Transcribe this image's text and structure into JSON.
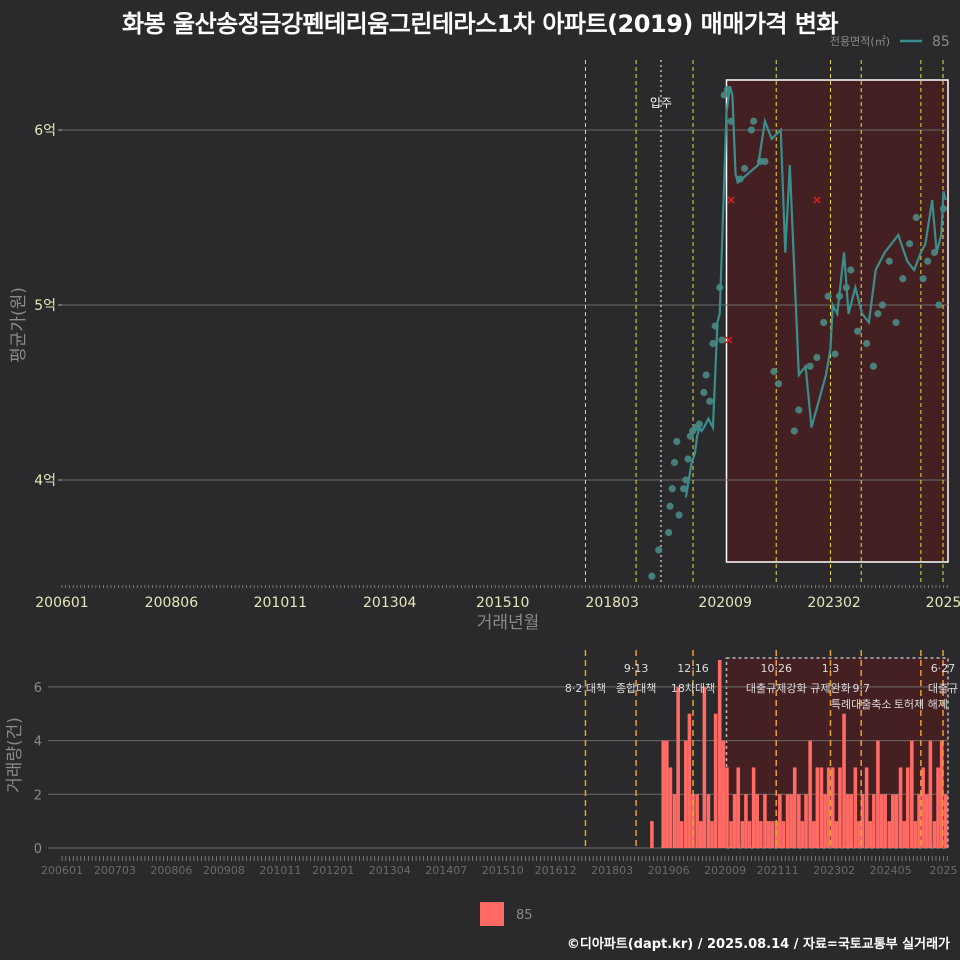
{
  "title": "화봉 울산송정금강펜테리움그린테라스1차 아파트(2019) 매매가격 변화",
  "footer": "©디아파트(dapt.kr) / 2025.08.14 / 자료=국토교통부 실거래가",
  "colors": {
    "background": "#2a2a2c",
    "line": "#3a8f8c",
    "point": "#4a8a84",
    "bar": "#ff6b64",
    "highlight_fill": "#4a1f22",
    "policy_yellow": "#e8e033",
    "policy_orange": "#e8a033",
    "cancel_mark": "#e02020"
  },
  "chart_data": [
    {
      "type": "line",
      "name": "price-chart",
      "title": "화봉 울산송정금강펜테리움그린테라스1차 아파트(2019) 매매가격 변화",
      "xlabel": "거래년월",
      "ylabel": "평균가(원)",
      "x_tick_labels": [
        "200601",
        "200806",
        "201011",
        "201304",
        "201510",
        "201803",
        "202009",
        "202302",
        "2025"
      ],
      "y_tick_labels": [
        "4억",
        "5억",
        "6억"
      ],
      "y_tick_values": [
        4.0,
        5.0,
        6.0
      ],
      "ylim": [
        3.4,
        6.4
      ],
      "y_unit": "억",
      "legend_title": "전용면적(㎡)",
      "legend_label": "85",
      "move_in_label": "입주",
      "move_in_x": 2019.25,
      "policy_lines": [
        2017.58,
        2018.7,
        2019.96,
        2021.8,
        2023.0,
        2023.68,
        2025.0,
        2025.49
      ],
      "highlight_range": [
        2020.7,
        2025.6
      ],
      "series": [
        {
          "name": "85",
          "x": [
            2019.8,
            2019.93,
            2020.0,
            2020.05,
            2020.1,
            2020.15,
            2020.2,
            2020.3,
            2020.4,
            2020.5,
            2020.55,
            2020.7,
            2020.78,
            2020.83,
            2020.9,
            2020.95,
            2021.4,
            2021.55,
            2021.7,
            2021.9,
            2022.0,
            2022.1,
            2022.3,
            2022.45,
            2022.58,
            2022.9,
            2023.0,
            2023.05,
            2023.15,
            2023.3,
            2023.4,
            2023.55,
            2023.7,
            2023.85,
            2024.0,
            2024.2,
            2024.35,
            2024.5,
            2024.7,
            2024.85,
            2025.0,
            2025.1,
            2025.25,
            2025.35,
            2025.45,
            2025.5,
            2025.55
          ],
          "y": [
            3.9,
            4.1,
            4.15,
            4.25,
            4.3,
            4.28,
            4.3,
            4.35,
            4.3,
            4.9,
            4.95,
            6.1,
            6.25,
            6.2,
            5.75,
            5.7,
            5.8,
            6.05,
            5.95,
            6.0,
            5.3,
            5.8,
            4.6,
            4.65,
            4.3,
            4.6,
            4.75,
            5.0,
            4.95,
            5.3,
            4.95,
            5.1,
            4.95,
            4.9,
            5.2,
            5.3,
            5.35,
            5.4,
            5.25,
            5.2,
            5.3,
            5.35,
            5.6,
            5.3,
            5.4,
            5.65,
            5.6
          ]
        }
      ],
      "points": {
        "x": [
          2019.05,
          2019.2,
          2019.42,
          2019.45,
          2019.5,
          2019.55,
          2019.6,
          2019.65,
          2019.75,
          2019.8,
          2019.85,
          2019.9,
          2019.95,
          2020.02,
          2020.1,
          2020.2,
          2020.25,
          2020.33,
          2020.4,
          2020.45,
          2020.55,
          2020.6,
          2020.65,
          2020.72,
          2020.8,
          2021.0,
          2021.1,
          2021.25,
          2021.3,
          2021.45,
          2021.55,
          2021.75,
          2021.85,
          2022.2,
          2022.3,
          2022.55,
          2022.7,
          2022.85,
          2022.95,
          2023.1,
          2023.2,
          2023.35,
          2023.45,
          2023.6,
          2023.8,
          2023.95,
          2024.05,
          2024.15,
          2024.3,
          2024.45,
          2024.6,
          2024.75,
          2024.9,
          2025.05,
          2025.15,
          2025.3,
          2025.4,
          2025.5
        ],
        "y": [
          3.45,
          3.6,
          3.7,
          3.85,
          3.95,
          4.1,
          4.22,
          3.8,
          3.95,
          4.0,
          4.12,
          4.25,
          4.28,
          4.3,
          4.32,
          4.5,
          4.6,
          4.45,
          4.78,
          4.88,
          5.1,
          4.8,
          6.2,
          6.23,
          6.05,
          5.72,
          5.78,
          6.0,
          6.05,
          5.82,
          5.82,
          4.62,
          4.55,
          4.28,
          4.4,
          4.65,
          4.7,
          4.9,
          5.05,
          4.72,
          5.05,
          5.1,
          5.2,
          4.85,
          4.78,
          4.65,
          4.95,
          5.0,
          5.25,
          4.9,
          5.15,
          5.35,
          5.5,
          5.15,
          5.25,
          5.3,
          5.0,
          5.55
        ]
      },
      "cancelled": {
        "x": [
          2020.75,
          2020.8,
          2022.7
        ],
        "y": [
          4.8,
          5.6,
          5.6
        ]
      }
    },
    {
      "type": "bar",
      "name": "volume-chart",
      "ylabel": "거래량(건)",
      "y_tick_labels": [
        "0",
        "2",
        "4",
        "6"
      ],
      "y_tick_values": [
        0,
        2,
        4,
        6
      ],
      "ylim": [
        0,
        7
      ],
      "x_tick_labels": [
        "200601",
        "200703",
        "200806",
        "200908",
        "201011",
        "201201",
        "201304",
        "201407",
        "201510",
        "201612",
        "201803",
        "201906",
        "202009",
        "202111",
        "202302",
        "202405",
        "2025"
      ],
      "legend_label": "85",
      "policy_lines": [
        2017.58,
        2018.7,
        2019.96,
        2021.8,
        2023.0,
        2023.68,
        2025.0,
        2025.49
      ],
      "highlight_range": [
        2020.7,
        2025.6
      ],
      "policy_annotations": [
        {
          "label": "8·2 대책",
          "x": 2017.58,
          "row": 1
        },
        {
          "label": "9·13",
          "x": 2018.7,
          "row": 0
        },
        {
          "label": "종합대책",
          "x": 2018.7,
          "row": 1
        },
        {
          "label": "12·16",
          "x": 2019.96,
          "row": 0
        },
        {
          "label": "18차대책",
          "x": 2019.96,
          "row": 1
        },
        {
          "label": "10·26",
          "x": 2021.8,
          "row": 0
        },
        {
          "label": "대출규제강화",
          "x": 2021.8,
          "row": 1
        },
        {
          "label": "1·3",
          "x": 2023.0,
          "row": 0
        },
        {
          "label": "규제완화",
          "x": 2023.0,
          "row": 1
        },
        {
          "label": "9·7",
          "x": 2023.68,
          "row": 1
        },
        {
          "label": "특례대출축소",
          "x": 2023.68,
          "row": 2
        },
        {
          "label": "토허제 해제",
          "x": 2025.0,
          "row": 2
        },
        {
          "label": "6·27",
          "x": 2025.49,
          "row": 0
        },
        {
          "label": "대출규",
          "x": 2025.49,
          "row": 1
        }
      ],
      "x": [
        2019.05,
        2019.3,
        2019.38,
        2019.46,
        2019.55,
        2019.63,
        2019.71,
        2019.8,
        2019.88,
        2019.96,
        2020.05,
        2020.13,
        2020.21,
        2020.3,
        2020.38,
        2020.46,
        2020.55,
        2020.63,
        2020.71,
        2020.8,
        2020.88,
        2020.96,
        2021.05,
        2021.13,
        2021.21,
        2021.3,
        2021.38,
        2021.46,
        2021.55,
        2021.63,
        2021.71,
        2021.8,
        2021.88,
        2021.96,
        2022.05,
        2022.13,
        2022.21,
        2022.3,
        2022.38,
        2022.46,
        2022.55,
        2022.63,
        2022.71,
        2022.8,
        2022.88,
        2022.96,
        2023.05,
        2023.13,
        2023.21,
        2023.3,
        2023.38,
        2023.46,
        2023.55,
        2023.63,
        2023.71,
        2023.8,
        2023.88,
        2023.96,
        2024.05,
        2024.13,
        2024.21,
        2024.3,
        2024.38,
        2024.46,
        2024.55,
        2024.63,
        2024.71,
        2024.8,
        2024.88,
        2024.96,
        2025.05,
        2025.13,
        2025.21,
        2025.3,
        2025.38,
        2025.46,
        2025.55
      ],
      "values": [
        1,
        4,
        4,
        3,
        2,
        6,
        1,
        4,
        5,
        2,
        2,
        1,
        6,
        2,
        1,
        5,
        7,
        4,
        3,
        1,
        2,
        3,
        1,
        2,
        1,
        3,
        2,
        1,
        2,
        1,
        1,
        1,
        2,
        1,
        2,
        2,
        3,
        2,
        1,
        2,
        4,
        1,
        3,
        3,
        2,
        3,
        3,
        1,
        3,
        5,
        2,
        2,
        3,
        1,
        2,
        3,
        1,
        2,
        4,
        2,
        2,
        1,
        2,
        2,
        3,
        1,
        3,
        4,
        1,
        2,
        3,
        2,
        4,
        1,
        3,
        4,
        2
      ]
    }
  ]
}
